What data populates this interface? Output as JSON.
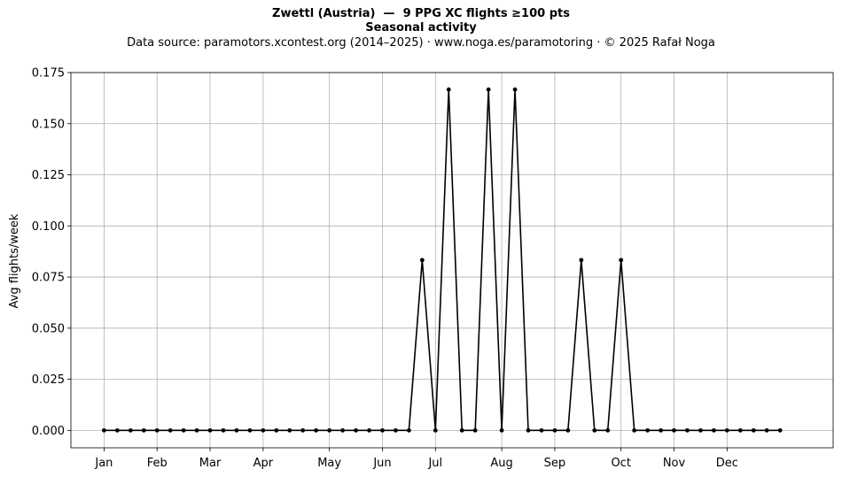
{
  "chart_data": {
    "type": "line",
    "title": "Zwettl (Austria)  —  9 PPG XC flights ≥100 pts",
    "title2": "Seasonal activity",
    "subtitle": "Data source: paramotors.xcontest.org (2014–2025)  ·  www.noga.es/paramotoring  ·  © 2025 Rafał Noga",
    "xlabel": "",
    "ylabel": "Avg flights/week",
    "xlim": [
      -2.5,
      55
    ],
    "ylim": [
      -0.0085,
      0.175
    ],
    "yticks": [
      0.0,
      0.025,
      0.05,
      0.075,
      0.1,
      0.125,
      0.15,
      0.175
    ],
    "ytick_labels": [
      "0.000",
      "0.025",
      "0.050",
      "0.075",
      "0.100",
      "0.125",
      "0.150",
      "0.175"
    ],
    "xticks": [
      0,
      4,
      8,
      12,
      17,
      21,
      25,
      30,
      34,
      39,
      43,
      47
    ],
    "xtick_labels": [
      "Jan",
      "Feb",
      "Mar",
      "Apr",
      "May",
      "Jun",
      "Jul",
      "Aug",
      "Sep",
      "Oct",
      "Nov",
      "Dec"
    ],
    "grid": true,
    "color": "#000000",
    "x": [
      0,
      1,
      2,
      3,
      4,
      5,
      6,
      7,
      8,
      9,
      10,
      11,
      12,
      13,
      14,
      15,
      16,
      17,
      18,
      19,
      20,
      21,
      22,
      23,
      24,
      25,
      26,
      27,
      28,
      29,
      30,
      31,
      32,
      33,
      34,
      35,
      36,
      37,
      38,
      39,
      40,
      41,
      42,
      43,
      44,
      45,
      46,
      47,
      48,
      49,
      50,
      51
    ],
    "y": [
      0,
      0,
      0,
      0,
      0,
      0,
      0,
      0,
      0,
      0,
      0,
      0,
      0,
      0,
      0,
      0,
      0,
      0,
      0,
      0,
      0,
      0,
      0,
      0,
      0.0833,
      0,
      0.1667,
      0,
      0,
      0.1667,
      0,
      0.1667,
      0,
      0,
      0,
      0,
      0.0833,
      0,
      0,
      0.0833,
      0,
      0,
      0,
      0,
      0,
      0,
      0,
      0,
      0,
      0,
      0,
      0
    ]
  }
}
